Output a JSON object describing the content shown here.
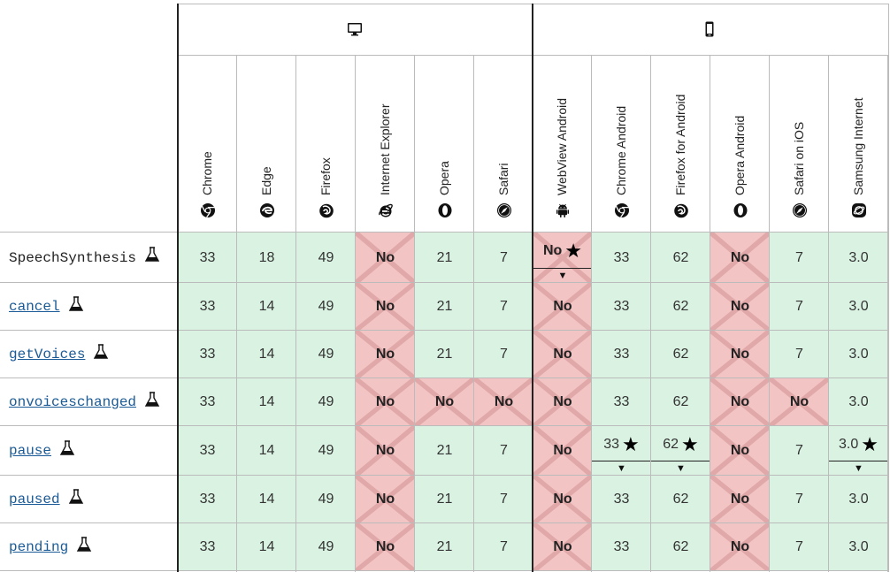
{
  "platforms": {
    "desktop_icon": "desktop-icon",
    "mobile_icon": "mobile-icon"
  },
  "browsers": [
    {
      "name": "Chrome",
      "icon": "chrome-icon"
    },
    {
      "name": "Edge",
      "icon": "edge-icon"
    },
    {
      "name": "Firefox",
      "icon": "firefox-icon"
    },
    {
      "name": "Internet Explorer",
      "icon": "ie-icon"
    },
    {
      "name": "Opera",
      "icon": "opera-icon"
    },
    {
      "name": "Safari",
      "icon": "safari-icon"
    },
    {
      "name": "WebView Android",
      "icon": "android-icon"
    },
    {
      "name": "Chrome Android",
      "icon": "chrome-icon"
    },
    {
      "name": "Firefox for Android",
      "icon": "firefox-icon"
    },
    {
      "name": "Opera Android",
      "icon": "opera-icon"
    },
    {
      "name": "Safari on iOS",
      "icon": "safari-icon"
    },
    {
      "name": "Samsung Internet",
      "icon": "samsung-icon"
    }
  ],
  "features": [
    {
      "name": "SpeechSynthesis",
      "link": false,
      "experimental": true,
      "values": [
        "33",
        "18",
        "49",
        "No",
        "21",
        "7",
        "No",
        "33",
        "62",
        "No",
        "7",
        "3.0"
      ],
      "notes": [
        6
      ]
    },
    {
      "name": "cancel",
      "link": true,
      "experimental": true,
      "values": [
        "33",
        "14",
        "49",
        "No",
        "21",
        "7",
        "No",
        "33",
        "62",
        "No",
        "7",
        "3.0"
      ],
      "notes": []
    },
    {
      "name": "getVoices",
      "link": true,
      "experimental": true,
      "values": [
        "33",
        "14",
        "49",
        "No",
        "21",
        "7",
        "No",
        "33",
        "62",
        "No",
        "7",
        "3.0"
      ],
      "notes": []
    },
    {
      "name": "onvoiceschanged",
      "link": true,
      "experimental": true,
      "values": [
        "33",
        "14",
        "49",
        "No",
        "No",
        "No",
        "No",
        "33",
        "62",
        "No",
        "No",
        "3.0"
      ],
      "notes": []
    },
    {
      "name": "pause",
      "link": true,
      "experimental": true,
      "values": [
        "33",
        "14",
        "49",
        "No",
        "21",
        "7",
        "No",
        "33",
        "62",
        "No",
        "7",
        "3.0"
      ],
      "notes": [
        7,
        8,
        11
      ]
    },
    {
      "name": "paused",
      "link": true,
      "experimental": true,
      "values": [
        "33",
        "14",
        "49",
        "No",
        "21",
        "7",
        "No",
        "33",
        "62",
        "No",
        "7",
        "3.0"
      ],
      "notes": []
    },
    {
      "name": "pending",
      "link": true,
      "experimental": true,
      "values": [
        "33",
        "14",
        "49",
        "No",
        "21",
        "7",
        "No",
        "33",
        "62",
        "No",
        "7",
        "3.0"
      ],
      "notes": []
    }
  ],
  "colors": {
    "supported": "#d9f2e2",
    "unsupported": "#f2c4c4",
    "link": "#1a5a96"
  }
}
